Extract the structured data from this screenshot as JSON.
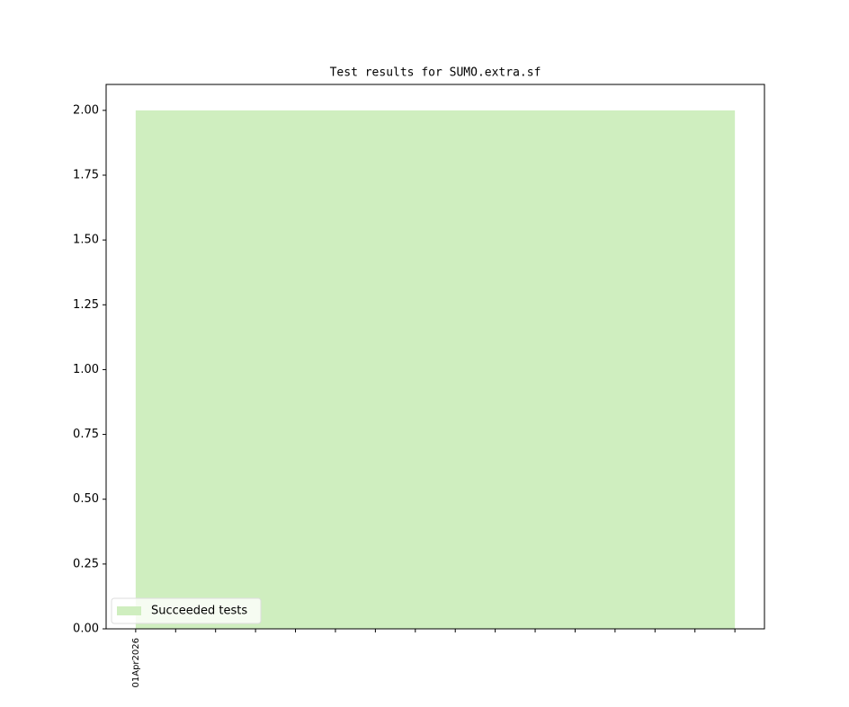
{
  "chart_data": {
    "type": "area",
    "title": "Test results for SUMO.extra.sf",
    "categories": [
      "01Apr2026",
      null,
      null,
      null,
      null,
      null,
      null,
      null,
      null,
      null,
      null,
      null,
      null,
      null,
      null,
      null
    ],
    "series": [
      {
        "name": "Succeeded tests",
        "color": "#cfeebf",
        "values": [
          2,
          2,
          2,
          2,
          2,
          2,
          2,
          2,
          2,
          2,
          2,
          2,
          2,
          2,
          2,
          2
        ]
      }
    ],
    "ylim": [
      0,
      2.1
    ],
    "yticks": [
      {
        "value": 0,
        "label": "0.00"
      },
      {
        "value": 0.25,
        "label": "0.25"
      },
      {
        "value": 0.5,
        "label": "0.50"
      },
      {
        "value": 0.75,
        "label": "0.75"
      },
      {
        "value": 1,
        "label": "1.00"
      },
      {
        "value": 1.25,
        "label": "1.25"
      },
      {
        "value": 1.5,
        "label": "1.50"
      },
      {
        "value": 1.75,
        "label": "1.75"
      },
      {
        "value": 2,
        "label": "2.00"
      }
    ],
    "legend": "lower left"
  }
}
